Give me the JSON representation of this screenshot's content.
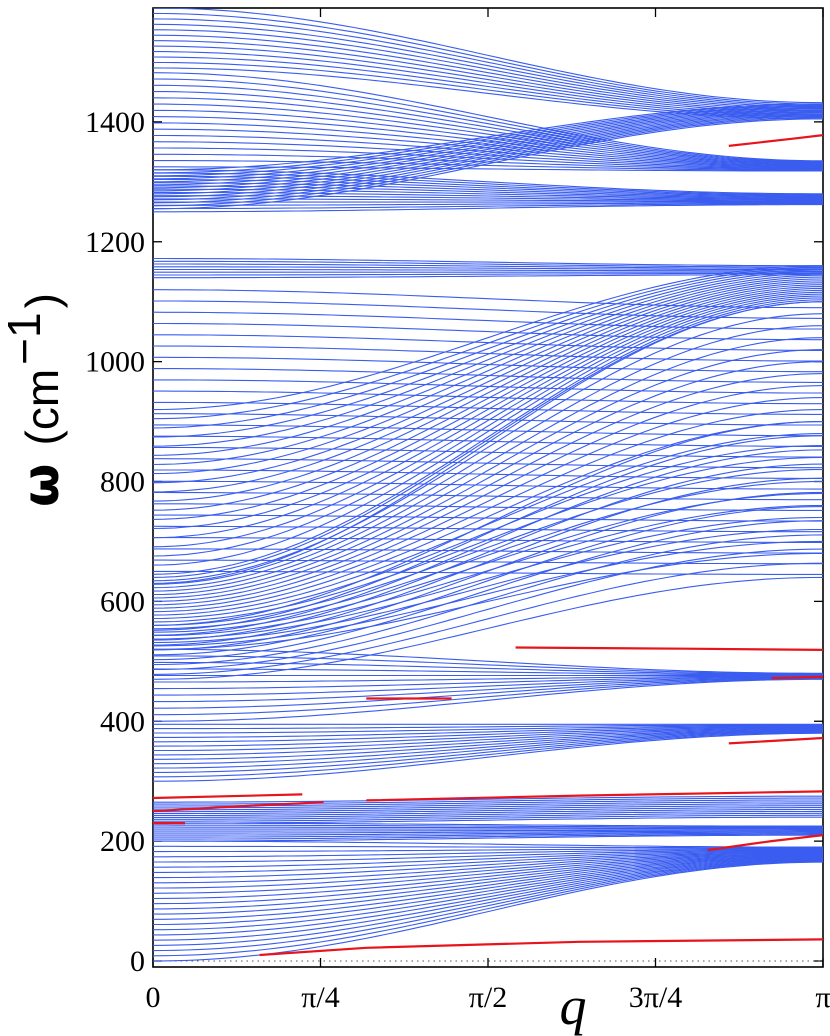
{
  "chart_data": {
    "type": "line",
    "title": "",
    "xlabel": "q",
    "ylabel": "ω (cm−1)",
    "ylabel_parts": {
      "symbol": "ω",
      "open": "(cm",
      "exp": "−1",
      "close": ")"
    },
    "xlim": [
      0,
      3.14159
    ],
    "ylim": [
      -10,
      1590
    ],
    "x_ticks": [
      {
        "value": 0,
        "label": "0"
      },
      {
        "value": 0.7854,
        "label": "π/4"
      },
      {
        "value": 1.5708,
        "label": "π/2"
      },
      {
        "value": 2.3562,
        "label": "3π/4"
      },
      {
        "value": 3.14159,
        "label": "π"
      }
    ],
    "y_ticks": [
      0,
      200,
      400,
      600,
      800,
      1000,
      1200,
      1400
    ],
    "grid": false,
    "legend": "none",
    "colors": {
      "bands": "#3a5df0",
      "localized_modes": "#e8141c"
    },
    "band_groups": [
      {
        "name": "",
        "n": 14,
        "start": [
          1255,
          1320
        ],
        "end": [
          1405,
          1430
        ]
      },
      {
        "name": "",
        "n": 16,
        "start": [
          1325,
          1482
        ],
        "end": [
          1318,
          1335
        ]
      },
      {
        "name": "",
        "n": 14,
        "start": [
          1250,
          1320
        ],
        "end": [
          1262,
          1280
        ]
      },
      {
        "name": "",
        "n": 12,
        "start": [
          1490,
          1590
        ],
        "end": [
          1405,
          1432
        ]
      },
      {
        "name": "",
        "n": 8,
        "start": [
          1140,
          1172
        ],
        "end": [
          1145,
          1160
        ]
      },
      {
        "name": "",
        "n": 26,
        "start": [
          650,
          1120
        ],
        "end": [
          645,
          1090
        ]
      },
      {
        "name": "",
        "n": 20,
        "start": [
          630,
          920
        ],
        "end": [
          1100,
          1160
        ]
      },
      {
        "name": "",
        "n": 22,
        "start": [
          520,
          640
        ],
        "end": [
          680,
          1100
        ]
      },
      {
        "name": "",
        "n": 12,
        "start": [
          470,
          560
        ],
        "end": [
          640,
          900
        ]
      },
      {
        "name": "",
        "n": 12,
        "start": [
          400,
          520
        ],
        "end": [
          470,
          480
        ]
      },
      {
        "name": "",
        "n": 14,
        "start": [
          300,
          395
        ],
        "end": [
          380,
          395
        ]
      },
      {
        "name": "",
        "n": 12,
        "start": [
          230,
          265
        ],
        "end": [
          240,
          275
        ]
      },
      {
        "name": "",
        "n": 10,
        "start": [
          200,
          230
        ],
        "end": [
          210,
          225
        ]
      },
      {
        "name": "",
        "n": 24,
        "start": [
          0,
          200
        ],
        "end": [
          165,
          190
        ]
      }
    ],
    "localized_modes": [
      {
        "x": [
          0.5,
          1.0,
          2.0,
          3.14159
        ],
        "y": [
          10,
          22,
          32,
          36
        ]
      },
      {
        "x": [
          2.6,
          2.9,
          3.14159
        ],
        "y": [
          185,
          200,
          210
        ]
      },
      {
        "x": [
          0.0,
          0.15
        ],
        "y": [
          230,
          230
        ]
      },
      {
        "x": [
          0.0,
          0.4,
          0.8
        ],
        "y": [
          250,
          258,
          265
        ]
      },
      {
        "x": [
          0.0,
          0.7
        ],
        "y": [
          272,
          278
        ]
      },
      {
        "x": [
          1.0,
          2.0,
          3.14159
        ],
        "y": [
          268,
          276,
          283
        ]
      },
      {
        "x": [
          2.7,
          3.14159
        ],
        "y": [
          363,
          372
        ]
      },
      {
        "x": [
          1.0,
          1.4
        ],
        "y": [
          438,
          438
        ]
      },
      {
        "x": [
          1.7,
          2.5,
          3.14159
        ],
        "y": [
          523,
          521,
          519
        ]
      },
      {
        "x": [
          2.9,
          3.14159
        ],
        "y": [
          472,
          474
        ]
      },
      {
        "x": [
          2.7,
          3.0,
          3.14159
        ],
        "y": [
          1360,
          1372,
          1378
        ]
      }
    ],
    "reference_line": {
      "y": 0,
      "style": "dotted"
    }
  }
}
